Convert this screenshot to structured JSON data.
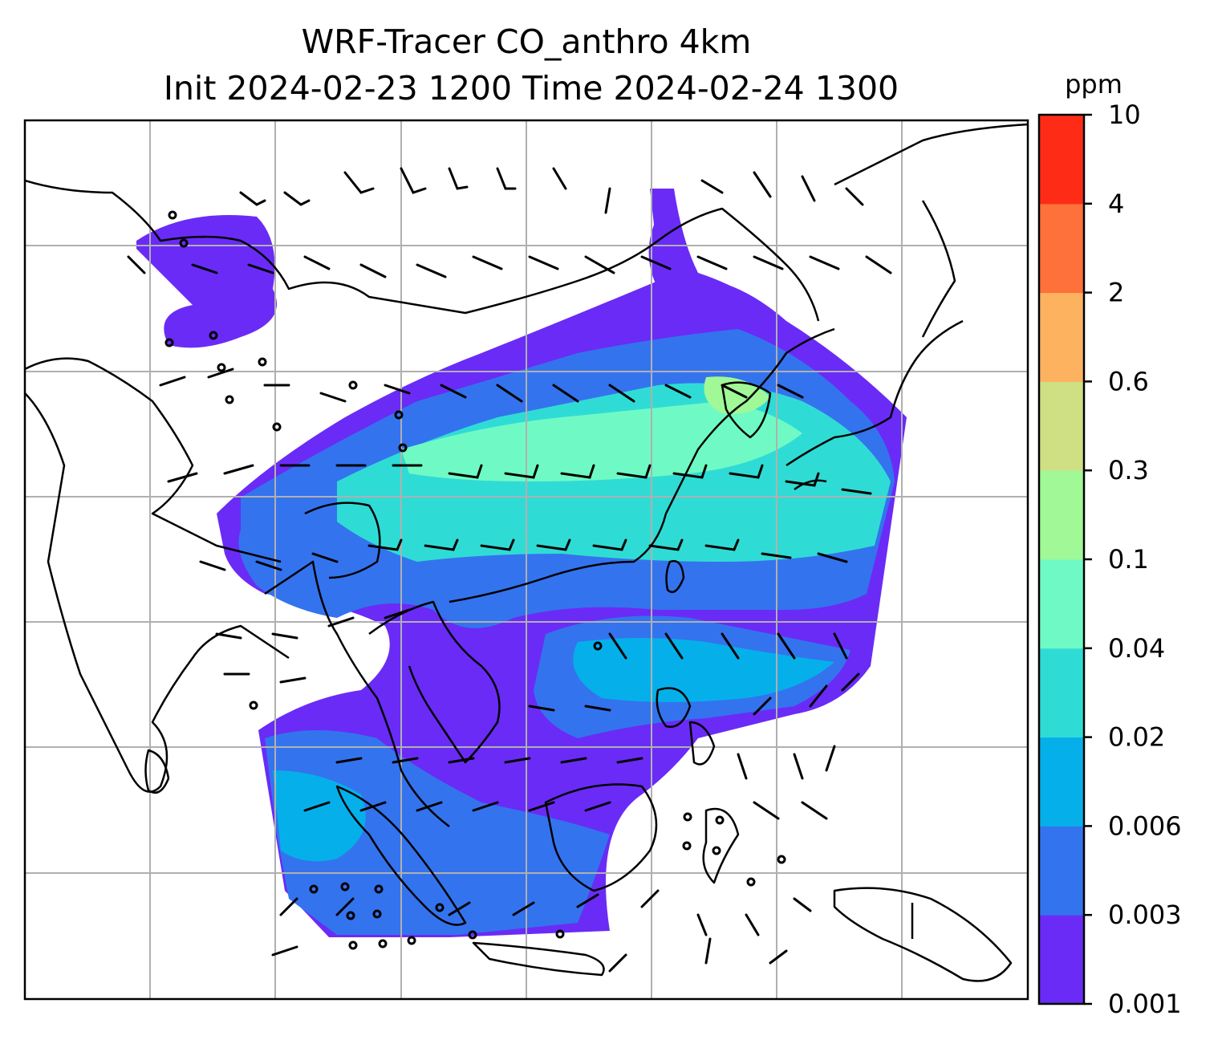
{
  "figure": {
    "title_line1": "WRF-Tracer CO_anthro 4km",
    "title_line2": "Init 2024-02-23 1200 Time 2024-02-24 1300"
  },
  "colorbar": {
    "unit_label": "ppm",
    "tick_labels": [
      "0.001",
      "0.003",
      "0.006",
      "0.02",
      "0.04",
      "0.1",
      "0.3",
      "0.6",
      "2",
      "4",
      "10"
    ],
    "colors": [
      "#6a2bf6",
      "#3473ee",
      "#05b0ea",
      "#2fdcd5",
      "#6ffac5",
      "#a0f896",
      "#cfdf84",
      "#fdb260",
      "#fe713a",
      "#fe2c17"
    ]
  },
  "map": {
    "gridlines": true,
    "coastline_color": "#000000",
    "grid_color": "#b0b0b0",
    "barb_color": "#000000",
    "legend_position": "right"
  }
}
